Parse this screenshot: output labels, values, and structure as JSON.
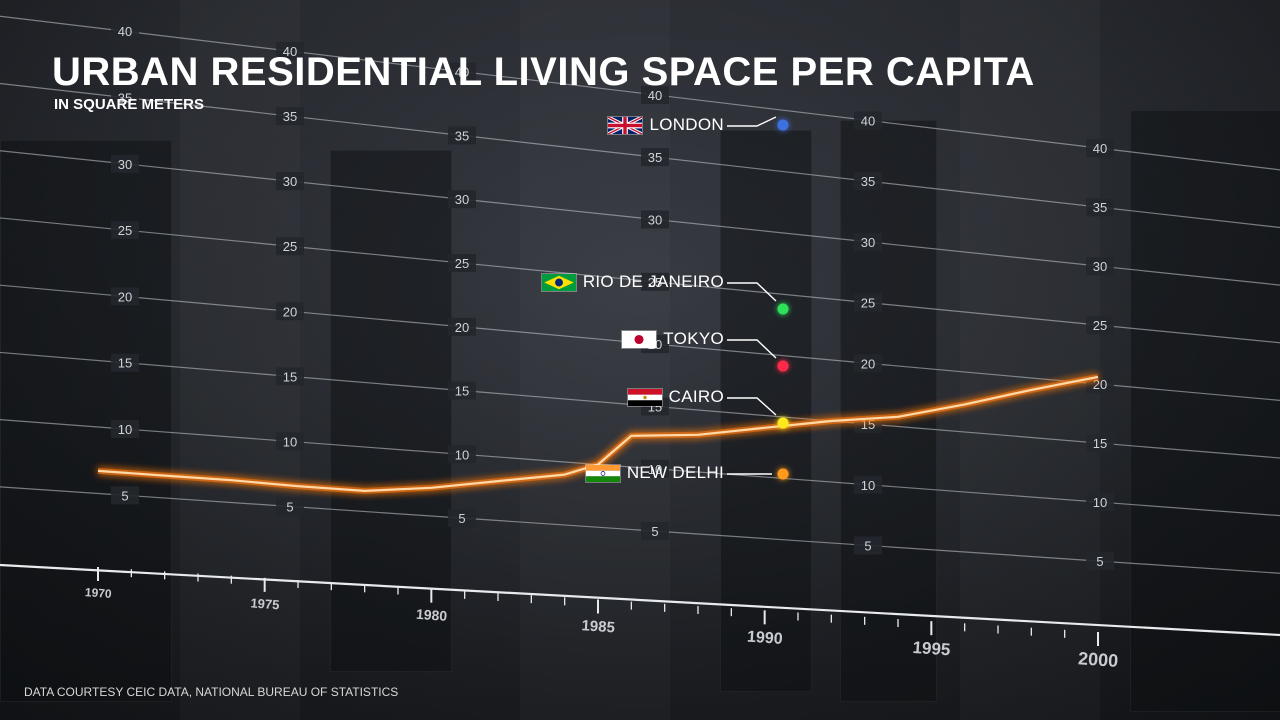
{
  "header": {
    "title": "URBAN RESIDENTIAL LIVING SPACE PER CAPITA",
    "subtitle": "IN SQUARE METERS"
  },
  "footer": {
    "source": "DATA COURTESY CEIC DATA, NATIONAL BUREAU OF STATISTICS"
  },
  "colors": {
    "line": "#ff9a2e",
    "line_glow": "#ff7a10",
    "grid": "#c9cdd4",
    "text": "#ffffff"
  },
  "chart_data": {
    "type": "line",
    "title": "URBAN RESIDENTIAL LIVING SPACE PER CAPITA",
    "subtitle": "IN SQUARE METERS",
    "xlabel": "",
    "ylabel": "",
    "xlim": [
      1970,
      2000
    ],
    "ylim": [
      0,
      40
    ],
    "x_ticks": [
      "1970",
      "1975",
      "1980",
      "1985",
      "1990",
      "1995",
      "2000"
    ],
    "y_ticks": [
      "5",
      "10",
      "15",
      "20",
      "25",
      "30",
      "35",
      "40"
    ],
    "grid": true,
    "series": [
      {
        "x": [
          1970,
          1972,
          1974,
          1976,
          1978,
          1980,
          1982,
          1984,
          1985,
          1986,
          1988,
          1990,
          1992,
          1994,
          1996,
          1998,
          2000
        ],
        "values": [
          6.7,
          6.7,
          6.7,
          6.6,
          6.6,
          7.2,
          8.1,
          9.0,
          10.0,
          12.5,
          13.0,
          14.0,
          15.0,
          15.8,
          17.3,
          19.0,
          20.6
        ]
      }
    ],
    "reference_points": [
      {
        "label": "LONDON",
        "value": 33.0,
        "color": "#3d6fe0",
        "flag": "uk"
      },
      {
        "label": "RIO DE JANEIRO",
        "value": 19.5,
        "color": "#2ee05a",
        "flag": "brazil"
      },
      {
        "label": "TOKYO",
        "value": 15.5,
        "color": "#ff2a4a",
        "flag": "japan"
      },
      {
        "label": "CAIRO",
        "value": 11.5,
        "color": "#ffe81a",
        "flag": "egypt"
      },
      {
        "label": "NEW DELHI",
        "value": 8.5,
        "color": "#ff9a1e",
        "flag": "india"
      }
    ]
  }
}
